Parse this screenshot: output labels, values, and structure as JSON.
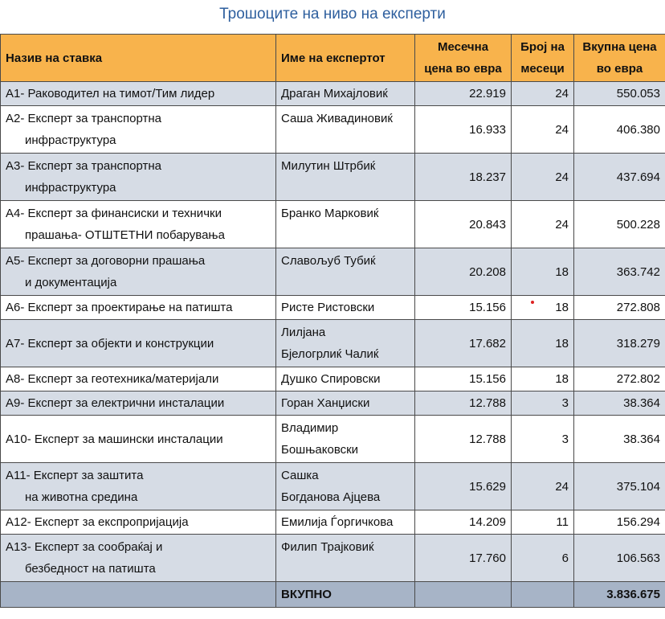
{
  "title": "Трошоците на ниво на експерти",
  "table": {
    "header": [
      [
        "Назив на ставка"
      ],
      [
        "Име на експертот"
      ],
      [
        "Месечна",
        "цена во евра"
      ],
      [
        "Број на",
        "месеци"
      ],
      [
        "Вкупна цена",
        "во евра"
      ]
    ],
    "rows": [
      {
        "item": [
          "A1- Раководител на тимот/Тим лидер"
        ],
        "expert": [
          "Драган Михајловиќ"
        ],
        "monthly": "22.919",
        "months": "24",
        "total": "550.053"
      },
      {
        "item": [
          "A2- Експерт за транспортна",
          "инфраструктура"
        ],
        "expert": [
          "Саша Живадиновиќ"
        ],
        "monthly": "16.933",
        "months": "24",
        "total": "406.380"
      },
      {
        "item": [
          "A3- Експерт за транспортна",
          "инфраструктура"
        ],
        "expert": [
          "Милутин Штрбиќ"
        ],
        "monthly": "18.237",
        "months": "24",
        "total": "437.694"
      },
      {
        "item": [
          "A4- Експерт за финансиски и технички",
          "прашања- ОТШТЕТНИ побарувања"
        ],
        "expert": [
          "Бранко Марковиќ"
        ],
        "monthly": "20.843",
        "months": "24",
        "total": "500.228"
      },
      {
        "item": [
          "A5- Експерт за договорни прашања",
          "и документација"
        ],
        "expert": [
          "Славољуб Тубиќ"
        ],
        "monthly": "20.208",
        "months": "18",
        "total": "363.742"
      },
      {
        "item": [
          "A6- Експерт за проектирање на патишта"
        ],
        "expert": [
          "Ристе Ристовски"
        ],
        "monthly": "15.156",
        "months": "18",
        "total": "272.808"
      },
      {
        "item": [
          "A7- Експерт за објекти и конструкции"
        ],
        "expert": [
          "Лилјана",
          "Бјелогрлиќ Чалиќ"
        ],
        "monthly": "17.682",
        "months": "18",
        "total": "318.279"
      },
      {
        "item": [
          "A8- Експерт за геотехника/материјали"
        ],
        "expert": [
          "Душко Спировски"
        ],
        "monthly": "15.156",
        "months": "18",
        "total": "272.802"
      },
      {
        "item": [
          "A9- Експерт за електрични инсталации"
        ],
        "expert": [
          "Горан Ханџиски"
        ],
        "monthly": "12.788",
        "months": "3",
        "total": "38.364"
      },
      {
        "item": [
          "A10- Експерт за машински инсталации"
        ],
        "expert": [
          "Владимир",
          "Бошњаковски"
        ],
        "monthly": "12.788",
        "months": "3",
        "total": "38.364"
      },
      {
        "item": [
          "A11- Експерт за заштита",
          "на животна средина"
        ],
        "expert": [
          "Сашка",
          "Богданова Ајцева"
        ],
        "monthly": "15.629",
        "months": "24",
        "total": "375.104"
      },
      {
        "item": [
          "A12- Експерт за експропријација"
        ],
        "expert": [
          "Емилија Ѓоргичкова"
        ],
        "monthly": "14.209",
        "months": "11",
        "total": "156.294"
      },
      {
        "item": [
          "A13- Експерт за сообраќај и",
          "безбедност на патишта"
        ],
        "expert": [
          "Филип Трајковиќ"
        ],
        "monthly": "17.760",
        "months": "6",
        "total": "106.563"
      }
    ],
    "footer": {
      "label": "ВКУПНО",
      "total": "3.836.675"
    }
  }
}
